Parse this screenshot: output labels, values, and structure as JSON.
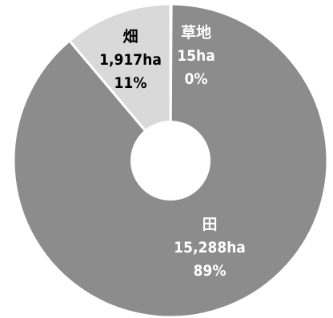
{
  "chart_data": {
    "type": "pie",
    "donut": true,
    "categories": [
      "田",
      "畑",
      "草地"
    ],
    "values": [
      15288,
      1917,
      15
    ],
    "value_labels": [
      "15,288ha",
      "1,917ha",
      "15ha"
    ],
    "percent_labels": [
      "89%",
      "11%",
      "0%"
    ],
    "colors": [
      "#8c8c8c",
      "#d9d9d9",
      "#8c8c8c"
    ],
    "label_colors": [
      "#ffffff",
      "#000000",
      "#ffffff"
    ],
    "slice_border_color": "#ffffff",
    "title": "",
    "legend": "none"
  }
}
